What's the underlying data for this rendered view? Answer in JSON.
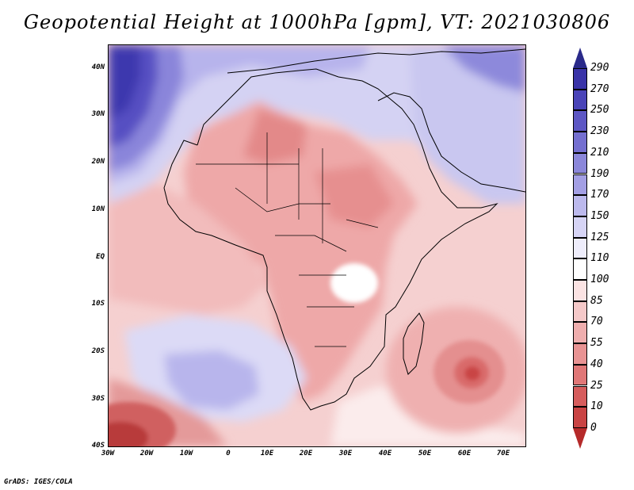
{
  "title": "Geopotential Height at 1000hPa [gpm], VT: 2021030806",
  "footer": "GrADS: IGES/COLA",
  "map": {
    "lat_labels": [
      "40N",
      "30N",
      "20N",
      "10N",
      "EQ",
      "10S",
      "20S",
      "30S",
      "40S"
    ],
    "lon_labels": [
      "30W",
      "20W",
      "10W",
      "0",
      "10E",
      "20E",
      "30E",
      "40E",
      "50E",
      "60E",
      "70E"
    ]
  },
  "colorbar": {
    "levels": [
      "290",
      "270",
      "250",
      "230",
      "210",
      "190",
      "170",
      "150",
      "125",
      "110",
      "100",
      "85",
      "70",
      "55",
      "40",
      "25",
      "10",
      "0"
    ],
    "colors": {
      "top_triangle": "#2a2a8a",
      "bands": [
        "#3a34a8",
        "#4a44b8",
        "#5d57c4",
        "#746fd0",
        "#8b87da",
        "#a39fe4",
        "#bcb9ed",
        "#d6d4f5",
        "#eeedfb",
        "#ffffff",
        "#fbe3e3",
        "#f5c9c9",
        "#efaeae",
        "#e89393",
        "#e07777",
        "#d65d5d",
        "#c94444"
      ],
      "bottom_triangle": "#b52a2a"
    }
  }
}
